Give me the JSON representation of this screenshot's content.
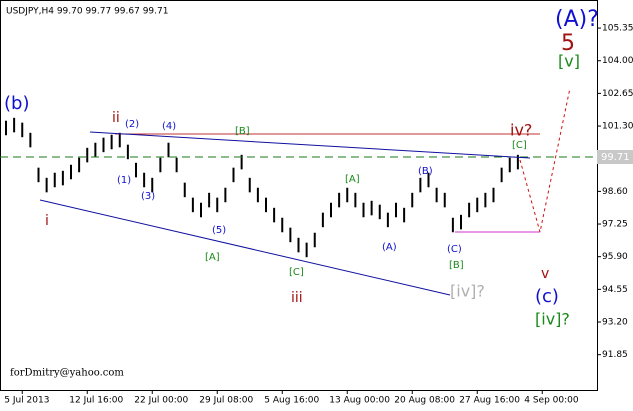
{
  "chart_data": {
    "type": "hlc-bars",
    "title": "USDJPY,H4  99.70 99.77 99.67 99.71",
    "footer": "forDmitry@yahoo.com",
    "price_label": "99.71",
    "categories": [
      null,
      null,
      "5 Jul 2013",
      null,
      null,
      null,
      null,
      null,
      null,
      null,
      "12 Jul 16:00",
      null,
      null,
      null,
      null,
      null,
      null,
      null,
      "22 Jul 00:00",
      null,
      null,
      null,
      null,
      null,
      null,
      null,
      "29 Jul 08:00",
      null,
      null,
      null,
      null,
      null,
      null,
      null,
      "5 Aug 16:00",
      null,
      null,
      null,
      null,
      null,
      null,
      null,
      "13 Aug 00:00",
      null,
      null,
      null,
      null,
      null,
      null,
      null,
      "20 Aug 08:00",
      null,
      null,
      null,
      null,
      null,
      null,
      null,
      "27 Aug 16:00",
      null,
      null,
      null,
      null,
      null,
      null,
      null,
      "4 Sep 00:00",
      null
    ],
    "high": [
      101.52,
      101.64,
      101.44,
      101.02,
      99.58,
      99.16,
      99.37,
      99.45,
      99.7,
      99.99,
      100.4,
      100.61,
      100.82,
      100.94,
      101.02,
      100.53,
      99.78,
      99.37,
      99.16,
      99.99,
      100.61,
      99.99,
      98.96,
      98.34,
      98.13,
      98.54,
      98.34,
      98.75,
      99.58,
      100.11,
      99.16,
      98.75,
      98.34,
      97.92,
      97.51,
      97.1,
      96.68,
      96.48,
      96.89,
      97.72,
      98.13,
      98.54,
      98.75,
      98.54,
      98.13,
      98.21,
      98.05,
      97.72,
      98.13,
      97.92,
      98.54,
      99.16,
      99.37,
      98.75,
      98.54,
      97.51,
      97.63,
      98.13,
      98.34,
      98.54,
      98.75,
      99.58,
      99.99,
      100.11,
      null,
      null,
      null,
      null
    ],
    "low": [
      100.92,
      101.04,
      100.84,
      100.42,
      98.98,
      98.56,
      98.77,
      98.85,
      99.1,
      99.39,
      99.8,
      100.01,
      100.22,
      100.34,
      100.42,
      99.93,
      99.18,
      98.77,
      98.56,
      99.39,
      100.01,
      99.39,
      98.36,
      97.74,
      97.53,
      97.94,
      97.74,
      98.15,
      98.98,
      99.51,
      98.56,
      98.15,
      97.74,
      97.32,
      96.91,
      96.5,
      96.08,
      95.88,
      96.29,
      97.12,
      97.53,
      97.94,
      98.15,
      97.94,
      97.53,
      97.61,
      97.45,
      97.12,
      97.53,
      97.32,
      97.94,
      98.56,
      98.77,
      98.15,
      97.94,
      96.91,
      97.03,
      97.53,
      97.74,
      97.94,
      98.15,
      98.98,
      99.39,
      99.51,
      null,
      null,
      null,
      null
    ],
    "color": "#000000",
    "ylim": [
      90.39,
      106.51
    ],
    "yticks": [
      91.85,
      {
        "value": 93.2,
        "label": "93.20"
      },
      94.55,
      {
        "value": 95.9,
        "label": "95.90"
      },
      97.25,
      {
        "value": 98.6,
        "label": "98.60"
      },
      {
        "value": 101.3,
        "label": "101.30"
      },
      102.65,
      {
        "value": 104,
        "label": "104.00"
      },
      105.35
    ],
    "annotations": [
      "(b)",
      "ii",
      "(2)",
      "(4)",
      "[B]",
      "iv?",
      "[C]",
      "(1)",
      "(3)",
      "i",
      "(B)",
      "[A]",
      "(5)",
      "(A)",
      "(C)",
      "[B]",
      "[A]",
      "[C]",
      "iii",
      "[iv]?",
      "v",
      "(c)",
      "[iv]?",
      "(A)?",
      "5",
      "[v]"
    ]
  }
}
